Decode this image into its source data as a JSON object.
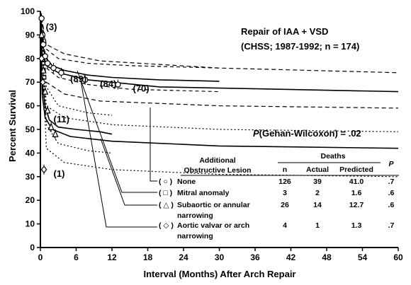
{
  "chart_data": {
    "type": "line",
    "title": "Repair of IAA  + VSD",
    "subtitle": "(CHSS; 1987-1992; n = 174)",
    "xlabel": "Interval (Months) After Arch Repair",
    "ylabel": "Percent Survival",
    "xlim": [
      0,
      60
    ],
    "ylim": [
      0,
      100
    ],
    "xticks": [
      0,
      6,
      12,
      18,
      24,
      30,
      36,
      42,
      48,
      54,
      60
    ],
    "yticks": [
      0,
      10,
      20,
      30,
      40,
      50,
      60,
      70,
      80,
      90,
      100
    ],
    "grid": false,
    "annotation": "P(Gehan-Wilcoxon) = .02",
    "annotation_italic": "P",
    "annotation_rest": "(Gehan-Wilcoxon) = .02",
    "number_at_risk": [
      {
        "x": 0.9,
        "y": 92,
        "label": "(3)"
      },
      {
        "x": 5.0,
        "y": 70,
        "label": "(89)"
      },
      {
        "x": 10.0,
        "y": 68,
        "label": "(84)"
      },
      {
        "x": 15.5,
        "y": 66,
        "label": "(70)"
      },
      {
        "x": 2.2,
        "y": 53,
        "label": "(11)"
      },
      {
        "x": 2.2,
        "y": 30,
        "label": "(1)"
      }
    ],
    "series": [
      {
        "marker": "circle",
        "kaplan_meier": [
          [
            0,
            100
          ],
          [
            0.2,
            97
          ],
          [
            0.35,
            90
          ],
          [
            0.5,
            86
          ],
          [
            0.8,
            81
          ],
          [
            1.2,
            78
          ],
          [
            2.2,
            76
          ],
          [
            3.5,
            74
          ],
          [
            7.5,
            71
          ],
          [
            13,
            69
          ]
        ],
        "fitted": [
          [
            0,
            100
          ],
          [
            0.3,
            88
          ],
          [
            0.6,
            83
          ],
          [
            1,
            80
          ],
          [
            2,
            77
          ],
          [
            4,
            75
          ],
          [
            8,
            73
          ],
          [
            12,
            72
          ],
          [
            20,
            71
          ],
          [
            30,
            70.4
          ]
        ],
        "upper": [
          [
            0,
            100
          ],
          [
            1,
            84
          ],
          [
            3,
            80
          ],
          [
            8,
            78
          ],
          [
            15,
            77
          ],
          [
            30,
            76
          ]
        ],
        "lower": [
          [
            0,
            100
          ],
          [
            1,
            76
          ],
          [
            3,
            72
          ],
          [
            8,
            69
          ],
          [
            15,
            67
          ],
          [
            30,
            66
          ]
        ]
      },
      {
        "marker": "square",
        "fitted": [
          [
            0,
            100
          ],
          [
            0.3,
            82
          ],
          [
            1,
            77
          ],
          [
            3,
            74
          ],
          [
            8,
            71
          ],
          [
            20,
            68
          ],
          [
            40,
            67
          ],
          [
            60,
            66
          ]
        ],
        "upper": [
          [
            0,
            100
          ],
          [
            1,
            86
          ],
          [
            4,
            82
          ],
          [
            10,
            79
          ],
          [
            30,
            76
          ],
          [
            60,
            74
          ]
        ],
        "lower": [
          [
            0,
            100
          ],
          [
            1,
            70
          ],
          [
            4,
            65
          ],
          [
            10,
            62
          ],
          [
            30,
            60
          ],
          [
            60,
            59
          ]
        ]
      },
      {
        "marker": "triangle",
        "kaplan_meier": [
          [
            0,
            100
          ],
          [
            0.2,
            90
          ],
          [
            0.5,
            75
          ],
          [
            0.8,
            66
          ],
          [
            1.2,
            58
          ],
          [
            1.8,
            51
          ],
          [
            2.5,
            48
          ]
        ],
        "fitted": [
          [
            0,
            100
          ],
          [
            0.3,
            70
          ],
          [
            0.8,
            60
          ],
          [
            1.5,
            54
          ],
          [
            3,
            51
          ],
          [
            6,
            50
          ],
          [
            10,
            49
          ],
          [
            12,
            48
          ]
        ],
        "upper": [
          [
            0,
            100
          ],
          [
            1,
            68
          ],
          [
            3,
            60
          ],
          [
            8,
            57
          ],
          [
            12,
            56
          ]
        ],
        "lower": [
          [
            0,
            100
          ],
          [
            1,
            52
          ],
          [
            3,
            44
          ],
          [
            8,
            41
          ],
          [
            12,
            40
          ]
        ]
      },
      {
        "marker": "diamond",
        "kaplan_meier": [
          [
            0,
            100
          ],
          [
            0.2,
            80
          ],
          [
            0.4,
            70
          ],
          [
            0.6,
            33
          ]
        ],
        "fitted": [
          [
            0,
            100
          ],
          [
            0.3,
            65
          ],
          [
            0.8,
            55
          ],
          [
            2,
            50
          ],
          [
            5,
            47
          ],
          [
            12,
            45
          ],
          [
            30,
            43
          ],
          [
            60,
            42
          ]
        ],
        "upper": [
          [
            0,
            100
          ],
          [
            1,
            60
          ],
          [
            4,
            55
          ],
          [
            12,
            52
          ],
          [
            30,
            50
          ],
          [
            60,
            49
          ]
        ],
        "lower": [
          [
            0,
            100
          ],
          [
            1,
            42
          ],
          [
            4,
            36
          ],
          [
            12,
            33
          ],
          [
            30,
            31
          ],
          [
            60,
            30
          ]
        ]
      }
    ],
    "table": {
      "col_lesion_1": "Additional",
      "col_lesion_2": "Obstructive Lesion",
      "deaths_group": "Deaths",
      "col_n": "n",
      "col_actual": "Actual",
      "col_predicted": "Predicted",
      "col_p": "P",
      "rows": [
        {
          "symbol": "( ○ )",
          "lesion": "None",
          "lesion2": "",
          "n": "126",
          "actual": "39",
          "predicted": "41.0",
          "p": ".7"
        },
        {
          "symbol": "( □ )",
          "lesion": "Mitral anomaly",
          "lesion2": "",
          "n": "3",
          "actual": "2",
          "predicted": "1.6",
          "p": ".6"
        },
        {
          "symbol": "( △ )",
          "lesion": "Subaortic or annular",
          "lesion2": "narrowing",
          "n": "26",
          "actual": "14",
          "predicted": "12.7",
          "p": ".6"
        },
        {
          "symbol": "( ◇ )",
          "lesion": "Aortic valvar or arch",
          "lesion2": "narrowing",
          "n": "4",
          "actual": "1",
          "predicted": "1.3",
          "p": ".7"
        }
      ]
    }
  }
}
